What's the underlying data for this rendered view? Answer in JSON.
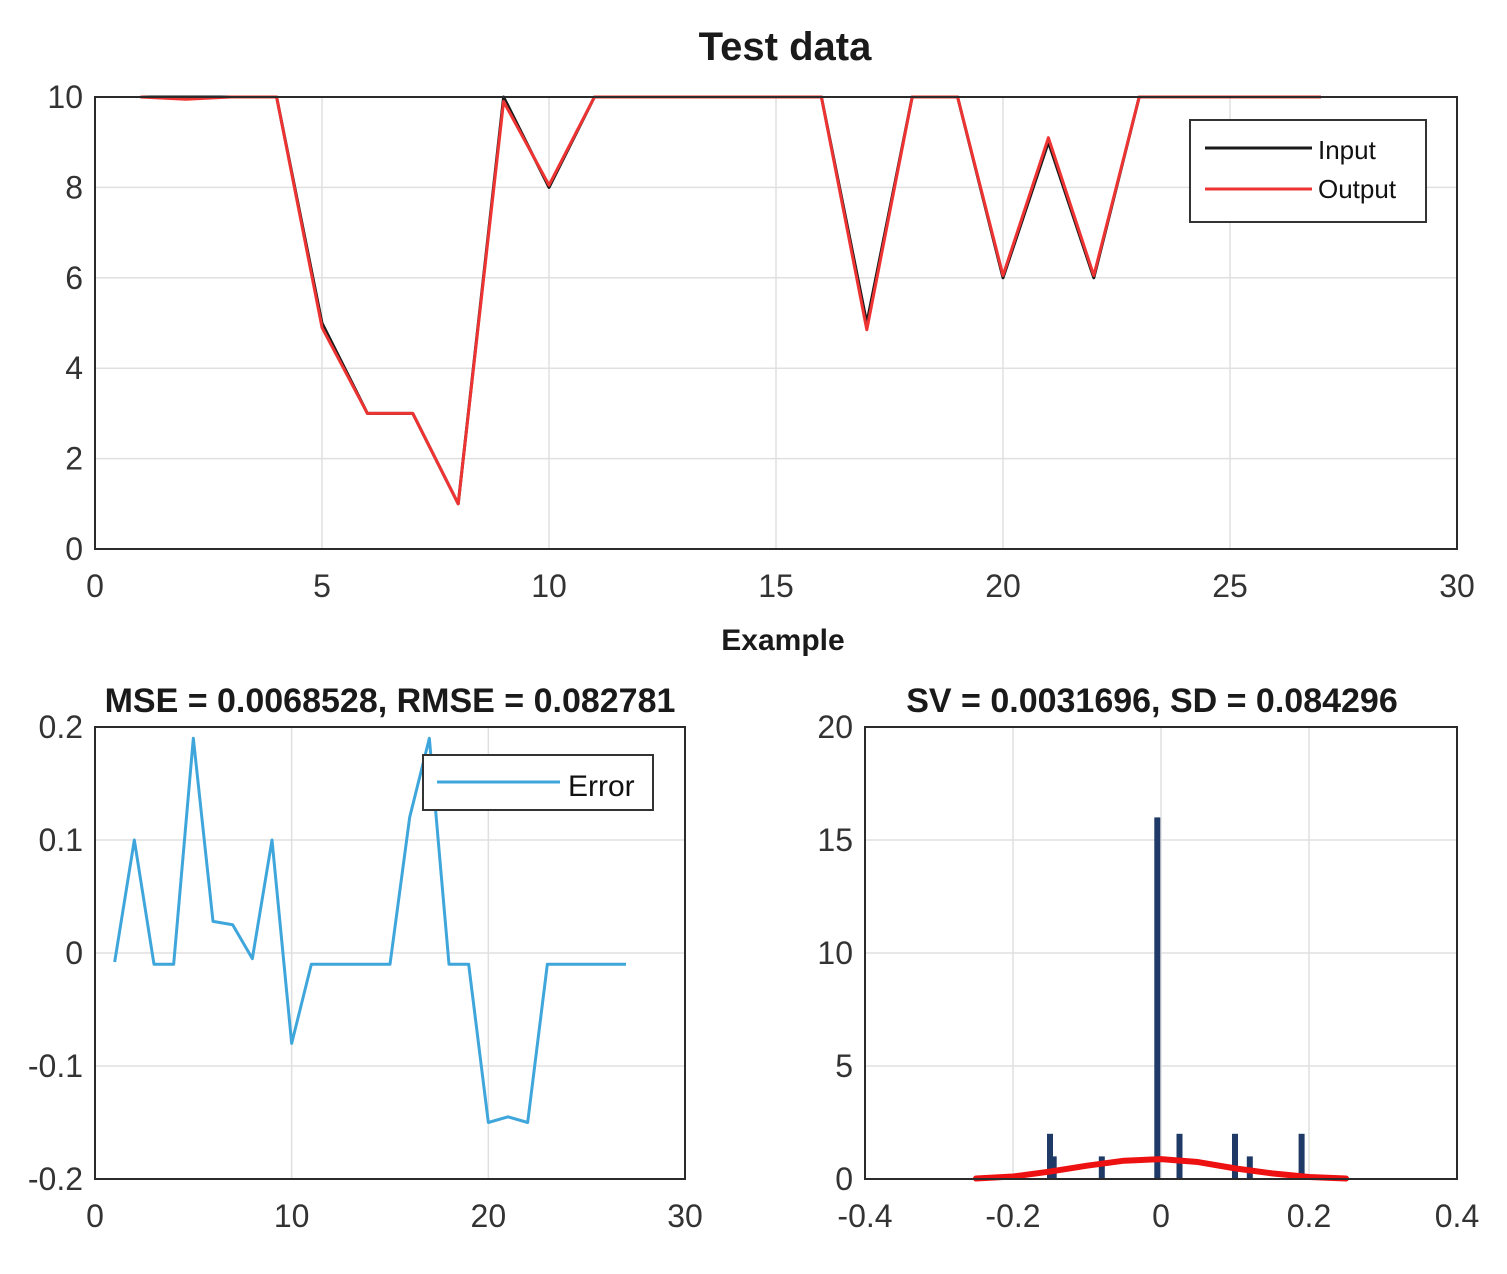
{
  "chart_data": [
    {
      "type": "line",
      "title": "Test data",
      "xlabel": "Example",
      "ylabel": "",
      "xlim": [
        0,
        30
      ],
      "ylim": [
        0,
        10
      ],
      "xticks": [
        0,
        5,
        10,
        15,
        20,
        25,
        30
      ],
      "yticks": [
        0,
        2,
        4,
        6,
        8,
        10
      ],
      "grid": true,
      "legend_position": "top-right",
      "x": [
        1,
        2,
        3,
        4,
        5,
        6,
        7,
        8,
        9,
        10,
        11,
        12,
        13,
        14,
        15,
        16,
        17,
        18,
        19,
        20,
        21,
        22,
        23,
        24,
        25,
        26,
        27
      ],
      "series": [
        {
          "name": "Input",
          "color": "#1a1a1a",
          "values": [
            10,
            10,
            10,
            10,
            5,
            3,
            3,
            1,
            10,
            8,
            10,
            10,
            10,
            10,
            10,
            10,
            5,
            10,
            10,
            6,
            9,
            6,
            10,
            10,
            10,
            10,
            10
          ]
        },
        {
          "name": "Output",
          "color": "#ee3333",
          "values": [
            10,
            9.95,
            10,
            10,
            4.9,
            3,
            3,
            1,
            9.9,
            8.05,
            10,
            10,
            10,
            10,
            10,
            10,
            4.85,
            10,
            10,
            6.05,
            9.1,
            6.05,
            10,
            10,
            10,
            10,
            10
          ]
        }
      ]
    },
    {
      "type": "line",
      "title": "MSE = 0.0068528, RMSE = 0.082781",
      "xlabel": "",
      "ylabel": "",
      "xlim": [
        0,
        30
      ],
      "ylim": [
        -0.2,
        0.2
      ],
      "xticks": [
        0,
        10,
        20,
        30
      ],
      "yticks": [
        -0.2,
        -0.1,
        0,
        0.1,
        0.2
      ],
      "grid": true,
      "legend_position": "top-right",
      "x": [
        1,
        2,
        3,
        4,
        5,
        6,
        7,
        8,
        9,
        10,
        11,
        12,
        13,
        14,
        15,
        16,
        17,
        18,
        19,
        20,
        21,
        22,
        23,
        24,
        25,
        26,
        27
      ],
      "series": [
        {
          "name": "Error",
          "color": "#3fa6dc",
          "values": [
            -0.008,
            0.1,
            -0.01,
            -0.01,
            0.19,
            0.028,
            0.025,
            -0.005,
            0.1,
            -0.08,
            -0.01,
            -0.01,
            -0.01,
            -0.01,
            -0.01,
            0.12,
            0.19,
            -0.01,
            -0.01,
            -0.15,
            -0.145,
            -0.15,
            -0.01,
            -0.01,
            -0.01,
            -0.01,
            -0.01
          ]
        }
      ]
    },
    {
      "type": "bar",
      "title": "SV = 0.0031696, SD = 0.084296",
      "xlabel": "",
      "ylabel": "",
      "xlim": [
        -0.4,
        0.4
      ],
      "ylim": [
        0,
        20
      ],
      "xticks": [
        -0.4,
        -0.2,
        0,
        0.2,
        0.4
      ],
      "yticks": [
        0,
        5,
        10,
        15,
        20
      ],
      "grid": true,
      "histogram": {
        "color": "#1f3a66",
        "bins": [
          {
            "x": -0.15,
            "count": 2
          },
          {
            "x": -0.145,
            "count": 1
          },
          {
            "x": -0.08,
            "count": 1
          },
          {
            "x": -0.005,
            "count": 16
          },
          {
            "x": 0.025,
            "count": 2
          },
          {
            "x": 0.1,
            "count": 2
          },
          {
            "x": 0.12,
            "count": 1
          },
          {
            "x": 0.19,
            "count": 2
          }
        ]
      },
      "fit_curve": {
        "color": "#ee1111",
        "x": [
          -0.25,
          -0.2,
          -0.15,
          -0.1,
          -0.05,
          0,
          0.05,
          0.1,
          0.15,
          0.2,
          0.25
        ],
        "y": [
          0.02,
          0.11,
          0.33,
          0.59,
          0.81,
          0.88,
          0.75,
          0.47,
          0.25,
          0.09,
          0.02
        ]
      }
    }
  ]
}
